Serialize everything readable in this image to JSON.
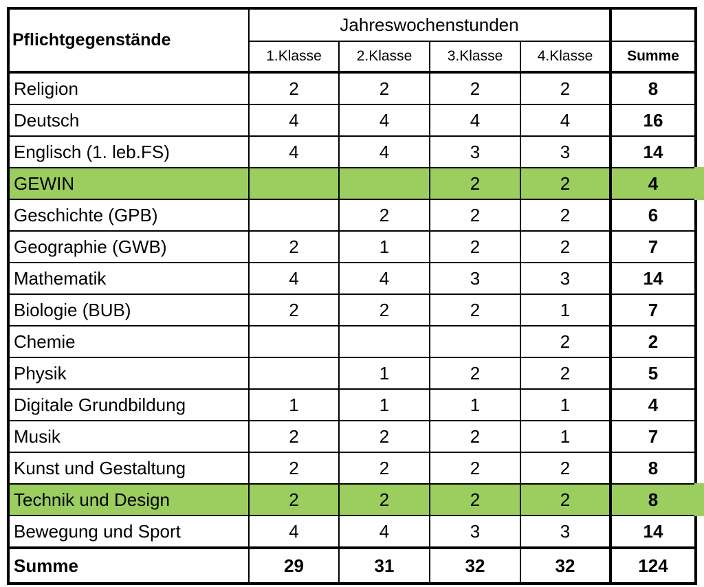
{
  "header": {
    "subject_col": "Pflichtgegenstände",
    "group": "Jahreswochenstunden",
    "classes": [
      "1.Klasse",
      "2.Klasse",
      "3.Klasse",
      "4.Klasse"
    ],
    "sum": "Summe"
  },
  "colors": {
    "highlight": "#9bcd5f"
  },
  "rows": [
    {
      "name": "Religion",
      "v": [
        "2",
        "2",
        "2",
        "2"
      ],
      "sum": "8",
      "highlight": false
    },
    {
      "name": "Deutsch",
      "v": [
        "4",
        "4",
        "4",
        "4"
      ],
      "sum": "16",
      "highlight": false
    },
    {
      "name": "Englisch (1. leb.FS)",
      "v": [
        "4",
        "4",
        "3",
        "3"
      ],
      "sum": "14",
      "highlight": false
    },
    {
      "name": "GEWIN",
      "v": [
        "",
        "",
        "2",
        "2"
      ],
      "sum": "4",
      "highlight": true
    },
    {
      "name": "Geschichte (GPB)",
      "v": [
        "",
        "2",
        "2",
        "2"
      ],
      "sum": "6",
      "highlight": false
    },
    {
      "name": "Geographie (GWB)",
      "v": [
        "2",
        "1",
        "2",
        "2"
      ],
      "sum": "7",
      "highlight": false
    },
    {
      "name": "Mathematik",
      "v": [
        "4",
        "4",
        "3",
        "3"
      ],
      "sum": "14",
      "highlight": false
    },
    {
      "name": "Biologie (BUB)",
      "v": [
        "2",
        "2",
        "2",
        "1"
      ],
      "sum": "7",
      "highlight": false
    },
    {
      "name": "Chemie",
      "v": [
        "",
        "",
        "",
        "2"
      ],
      "sum": "2",
      "highlight": false
    },
    {
      "name": "Physik",
      "v": [
        "",
        "1",
        "2",
        "2"
      ],
      "sum": "5",
      "highlight": false
    },
    {
      "name": "Digitale Grundbildung",
      "v": [
        "1",
        "1",
        "1",
        "1"
      ],
      "sum": "4",
      "highlight": false
    },
    {
      "name": "Musik",
      "v": [
        "2",
        "2",
        "2",
        "1"
      ],
      "sum": "7",
      "highlight": false
    },
    {
      "name": "Kunst und Gestaltung",
      "v": [
        "2",
        "2",
        "2",
        "2"
      ],
      "sum": "8",
      "highlight": false
    },
    {
      "name": "Technik und Design",
      "v": [
        "2",
        "2",
        "2",
        "2"
      ],
      "sum": "8",
      "highlight": true
    },
    {
      "name": "Bewegung und Sport",
      "v": [
        "4",
        "4",
        "3",
        "3"
      ],
      "sum": "14",
      "highlight": false
    }
  ],
  "total": {
    "label": "Summe",
    "v": [
      "29",
      "31",
      "32",
      "32"
    ],
    "sum": "124"
  }
}
